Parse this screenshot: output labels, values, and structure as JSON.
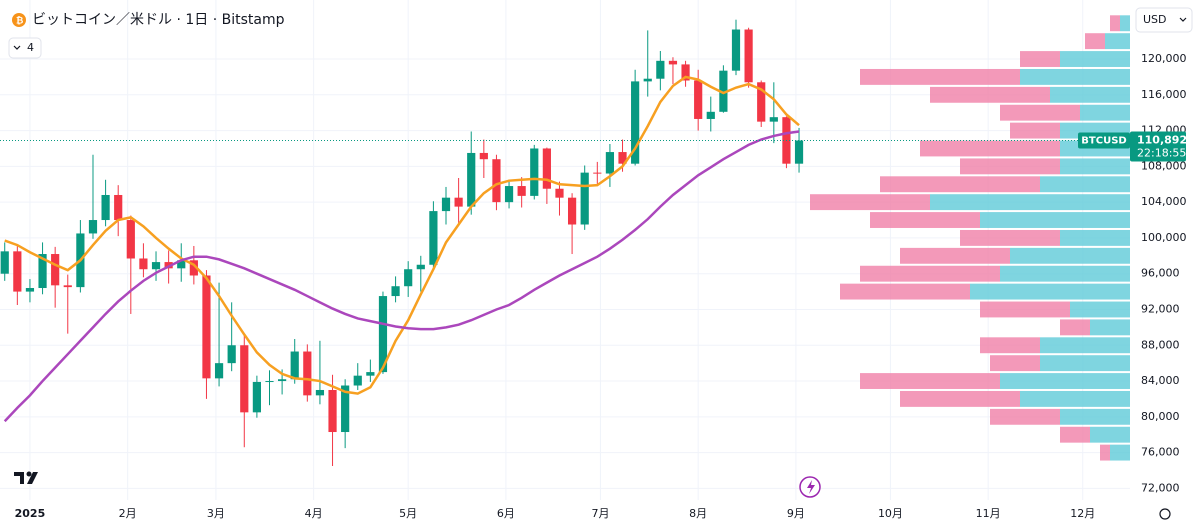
{
  "chart_data": {
    "type": "candlestick",
    "title": "ビットコイン／米ドル · 1日 · Bitstamp",
    "indicator_count": "4",
    "currency": "USD",
    "x": [
      -8,
      -4,
      0,
      4,
      8,
      12,
      16,
      20,
      24,
      28,
      32,
      36,
      40,
      44,
      48,
      52,
      56,
      60,
      64,
      68,
      72,
      76,
      80,
      84,
      88,
      92,
      96,
      100,
      104,
      108,
      112,
      116,
      120,
      124,
      128,
      132,
      136,
      140,
      144,
      148,
      152,
      156,
      160,
      164,
      168,
      172,
      176,
      180,
      184,
      188,
      192,
      196,
      200,
      204,
      208,
      212,
      216,
      220,
      224,
      228,
      232,
      236,
      240,
      244
    ],
    "open": [
      96000,
      98500,
      94000,
      94400,
      98200,
      94700,
      94500,
      100500,
      102000,
      104800,
      102000,
      97700,
      96500,
      97300,
      96600,
      97500,
      95800,
      84300,
      86000,
      88000,
      80500,
      83900,
      84000,
      84200,
      87300,
      82400,
      83000,
      78300,
      83500,
      84600,
      85000,
      93500,
      94600,
      96500,
      97000,
      103000,
      104500,
      103500,
      109500,
      108800,
      104000,
      105800,
      104700,
      110000,
      105500,
      104500,
      101500,
      107300,
      107200,
      109600,
      108300,
      117500,
      117800,
      119800,
      119400,
      117600,
      113300,
      114100,
      118700,
      123300,
      117400,
      113000,
      113500,
      108300
    ],
    "high": [
      99500,
      99300,
      95400,
      99500,
      99000,
      95900,
      102000,
      109300,
      106500,
      105900,
      102500,
      99400,
      98500,
      98600,
      99400,
      99100,
      96400,
      95000,
      92800,
      89300,
      84600,
      85200,
      85300,
      88700,
      88100,
      88500,
      84700,
      84200,
      86000,
      86400,
      94000,
      95700,
      97400,
      98000,
      104100,
      105700,
      106700,
      111900,
      111000,
      109300,
      106400,
      106800,
      110400,
      110100,
      106300,
      105000,
      108100,
      108500,
      110500,
      111000,
      118800,
      123200,
      120900,
      120200,
      119800,
      118800,
      115800,
      119300,
      124400,
      123500,
      117600,
      117400,
      113600,
      112300
    ],
    "low": [
      95200,
      92500,
      92800,
      93700,
      92200,
      89300,
      93900,
      99900,
      101300,
      100200,
      91500,
      95600,
      95200,
      94900,
      95100,
      94800,
      82000,
      83400,
      85100,
      76600,
      79900,
      81300,
      82500,
      83700,
      81700,
      81400,
      74500,
      76500,
      83000,
      83900,
      84800,
      92800,
      93400,
      94000,
      96500,
      101500,
      101400,
      102600,
      106700,
      103100,
      103300,
      103400,
      104300,
      103800,
      102500,
      98200,
      100900,
      105800,
      105700,
      107400,
      108100,
      115800,
      116500,
      117200,
      116900,
      112000,
      111900,
      114000,
      118200,
      116800,
      112400,
      110600,
      107800,
      107300
    ],
    "close": [
      98500,
      94000,
      94400,
      98200,
      94700,
      94500,
      100500,
      102000,
      104800,
      102000,
      97700,
      96500,
      97300,
      96600,
      97500,
      95800,
      84300,
      86000,
      88000,
      80500,
      83900,
      84000,
      84200,
      87300,
      82400,
      83000,
      78300,
      83500,
      84600,
      85000,
      93500,
      94600,
      96500,
      97000,
      103000,
      104500,
      103500,
      109500,
      108800,
      104000,
      105800,
      104700,
      110000,
      105500,
      104500,
      101500,
      107300,
      107200,
      109600,
      108300,
      117500,
      117800,
      119800,
      119400,
      117600,
      113300,
      114100,
      118700,
      123300,
      117400,
      113000,
      113500,
      108300,
      110892
    ],
    "up_color": "#089981",
    "down_color": "#f23645",
    "series": [
      {
        "type": "line",
        "color": "#f7a021",
        "values": [
          99700,
          99200,
          98400,
          97700,
          97000,
          96400,
          97500,
          99200,
          100800,
          102000,
          102300,
          101300,
          100000,
          98800,
          97700,
          97000,
          95500,
          93500,
          91300,
          89200,
          87200,
          85800,
          84800,
          84300,
          84200,
          84000,
          83400,
          82800,
          82600,
          83300,
          85500,
          88500,
          90800,
          93700,
          96500,
          99500,
          101500,
          103500,
          105000,
          106000,
          106400,
          106500,
          106600,
          106500,
          106000,
          105900,
          105800,
          105900,
          106900,
          108000,
          110000,
          112500,
          115200,
          117000,
          118000,
          117700,
          116900,
          116200,
          116800,
          117200,
          116600,
          115500,
          113800,
          112600
        ]
      },
      {
        "type": "line",
        "color": "#ab47bc",
        "values": [
          79500,
          81000,
          82400,
          84000,
          85500,
          87000,
          88500,
          90000,
          91500,
          92900,
          94100,
          95200,
          96100,
          96800,
          97500,
          97900,
          97900,
          97600,
          97100,
          96600,
          96000,
          95400,
          94800,
          94200,
          93500,
          92800,
          92100,
          91500,
          91000,
          90700,
          90400,
          90100,
          89900,
          89800,
          89800,
          90000,
          90300,
          90800,
          91400,
          92000,
          92500,
          93300,
          94200,
          95000,
          95800,
          96500,
          97200,
          97900,
          98800,
          99800,
          100900,
          102100,
          103500,
          104800,
          105900,
          107000,
          107900,
          108800,
          109600,
          110400,
          111000,
          111400,
          111700,
          111900
        ]
      }
    ],
    "volume_profile": {
      "levels": [
        124000,
        122000,
        120000,
        118000,
        116000,
        114000,
        112000,
        110000,
        108000,
        106000,
        104000,
        102000,
        100000,
        98000,
        96000,
        94000,
        92000,
        90000,
        88000,
        86000,
        84000,
        82000,
        80000,
        78000,
        76000
      ],
      "up": [
        10,
        25,
        70,
        110,
        80,
        50,
        70,
        70,
        70,
        90,
        200,
        150,
        70,
        120,
        130,
        160,
        60,
        40,
        90,
        90,
        130,
        110,
        70,
        40,
        20
      ],
      "down": [
        10,
        20,
        40,
        160,
        120,
        80,
        50,
        140,
        100,
        160,
        120,
        110,
        100,
        110,
        140,
        130,
        90,
        30,
        60,
        50,
        140,
        120,
        70,
        30,
        10
      ],
      "up_color": "#5fcbd8",
      "down_color": "#f07fa8"
    },
    "price_tag": {
      "symbol": "BTCUSD",
      "value": 110892,
      "label": "110,892",
      "countdown": "22:18:55"
    },
    "xlim": [
      -9.5,
      349
    ],
    "xticks": [
      {
        "value": 0,
        "label": "2025"
      },
      {
        "value": 31,
        "label": "2月"
      },
      {
        "value": 59,
        "label": "3月"
      },
      {
        "value": 90,
        "label": "4月"
      },
      {
        "value": 120,
        "label": "5月"
      },
      {
        "value": 151,
        "label": "6月"
      },
      {
        "value": 181,
        "label": "7月"
      },
      {
        "value": 212,
        "label": "8月"
      },
      {
        "value": 243,
        "label": "9月"
      },
      {
        "value": 273,
        "label": "10月"
      },
      {
        "value": 304,
        "label": "11月"
      },
      {
        "value": 334,
        "label": "12月"
      }
    ],
    "ylim": [
      70700,
      126600
    ],
    "yticks": [
      {
        "value": 72000,
        "label": "72,000"
      },
      {
        "value": 76000,
        "label": "76,000"
      },
      {
        "value": 80000,
        "label": "80,000"
      },
      {
        "value": 84000,
        "label": "84,000"
      },
      {
        "value": 88000,
        "label": "88,000"
      },
      {
        "value": 92000,
        "label": "92,000"
      },
      {
        "value": 96000,
        "label": "96,000"
      },
      {
        "value": 100000,
        "label": "100,000"
      },
      {
        "value": 104000,
        "label": "104,000"
      },
      {
        "value": 108000,
        "label": "108,000"
      },
      {
        "value": 112000,
        "label": "112,000"
      },
      {
        "value": 116000,
        "label": "116,000"
      },
      {
        "value": 120000,
        "label": "120,000"
      }
    ],
    "grid": true
  }
}
